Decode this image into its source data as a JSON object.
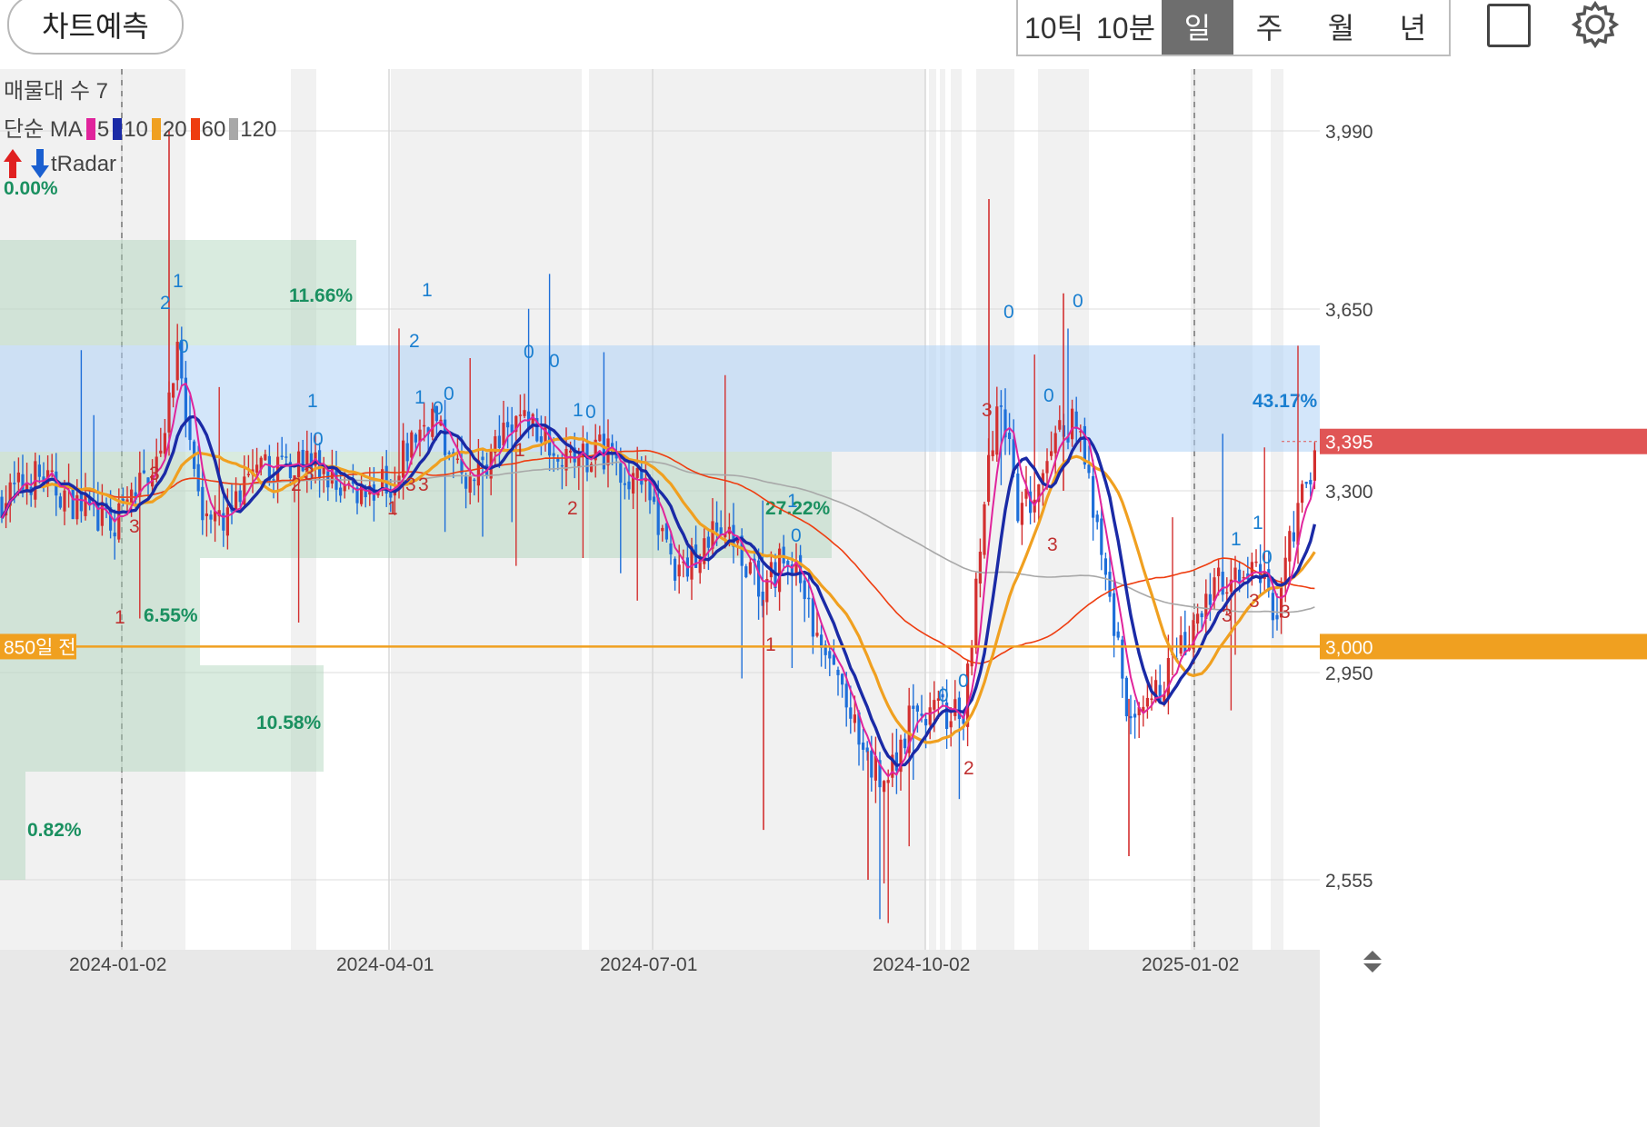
{
  "toolbar": {
    "predict_label": "차트예측",
    "periods": [
      "10틱",
      "10분",
      "일",
      "주",
      "월",
      "년"
    ],
    "active_period": "일"
  },
  "legend": {
    "volume_profile": "매물대 수 7",
    "ma_label": "단순 MA",
    "ma": [
      {
        "period": "5",
        "color": "#e0249c"
      },
      {
        "period": "10",
        "color": "#1a2aa6"
      },
      {
        "period": "20",
        "color": "#f0a020"
      },
      {
        "period": "60",
        "color": "#ee3d10"
      },
      {
        "period": "120",
        "color": "#a8a8a8"
      }
    ],
    "tradar": "tRadar"
  },
  "chart_data": {
    "type": "candlestick",
    "x_ticks": [
      "2024-01-02",
      "2024-04-01",
      "2024-07-01",
      "2024-10-02",
      "2025-01-02"
    ],
    "y_ticks": [
      3990,
      3650,
      3300,
      2950,
      2555
    ],
    "price_labels": {
      "current": "3,395",
      "reference": "3,000",
      "reference_note": "850일 전"
    },
    "volume_profile_pct": [
      "0.00%",
      "11.66%",
      "43.17%",
      "27.22%",
      "6.55%",
      "10.58%",
      "0.82%"
    ],
    "colors": {
      "up": "#d32f2f",
      "down": "#1e6fd9",
      "reference": "#f0a020",
      "current": "#e05555"
    }
  }
}
